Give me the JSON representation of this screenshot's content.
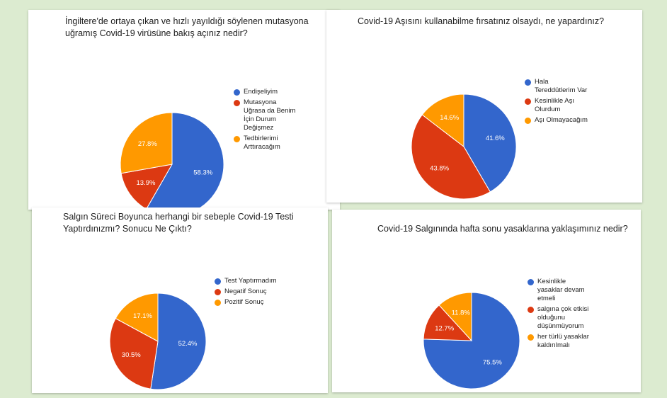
{
  "colors": {
    "blue": "#3366cc",
    "red": "#dc3912",
    "orange": "#ff9900"
  },
  "chart_data": [
    {
      "type": "pie",
      "title": "İngiltere'de ortaya çıkan ve hızlı yayıldığı söylenen mutasyona uğramış Covid-19 virüsüne bakış açınız nedir?",
      "categories": [
        "Endişeliyim",
        "Mutasyona Uğrasa da Benim İçin Durum Değişmez",
        "Tedbirlerimi Arttıracağım"
      ],
      "values": [
        58.3,
        13.9,
        27.8
      ],
      "labels": [
        "58.3%",
        "13.9%",
        "27.8%"
      ],
      "colors": [
        "#3366cc",
        "#dc3912",
        "#ff9900"
      ],
      "legend": "right"
    },
    {
      "type": "pie",
      "title": "Covid-19 Aşısını kullanabilme fırsatınız olsaydı, ne yapardınız?",
      "categories": [
        "Hala Tereddütlerim Var",
        "Kesinlikle Aşı Olurdum",
        "Aşı Olmayacağım"
      ],
      "values": [
        41.6,
        43.8,
        14.6
      ],
      "labels": [
        "41.6%",
        "43.8%",
        "14.6%"
      ],
      "colors": [
        "#3366cc",
        "#dc3912",
        "#ff9900"
      ],
      "legend": "right"
    },
    {
      "type": "pie",
      "title": "Salgın Süreci Boyunca herhangi bir sebeple Covid-19 Testi Yaptırdınızmı? Sonucu Ne Çıktı?",
      "categories": [
        "Test Yaptırmadım",
        "Negatif Sonuç",
        "Pozitif Sonuç"
      ],
      "values": [
        52.4,
        30.5,
        17.1
      ],
      "labels": [
        "52.4%",
        "30.5%",
        "17.1%"
      ],
      "colors": [
        "#3366cc",
        "#dc3912",
        "#ff9900"
      ],
      "legend": "right"
    },
    {
      "type": "pie",
      "title": "Covid-19 Salgınında hafta sonu yasaklarına yaklaşımınız nedir?",
      "categories": [
        "Kesinlikle yasaklar devam etmeli",
        "salgına çok etkisi olduğunu düşünmüyorum",
        "her türlü yasaklar kaldırılmalı"
      ],
      "values": [
        75.5,
        12.7,
        11.8
      ],
      "labels": [
        "75.5%",
        "12.7%",
        "11.8%"
      ],
      "colors": [
        "#3366cc",
        "#dc3912",
        "#ff9900"
      ],
      "legend": "right"
    }
  ]
}
